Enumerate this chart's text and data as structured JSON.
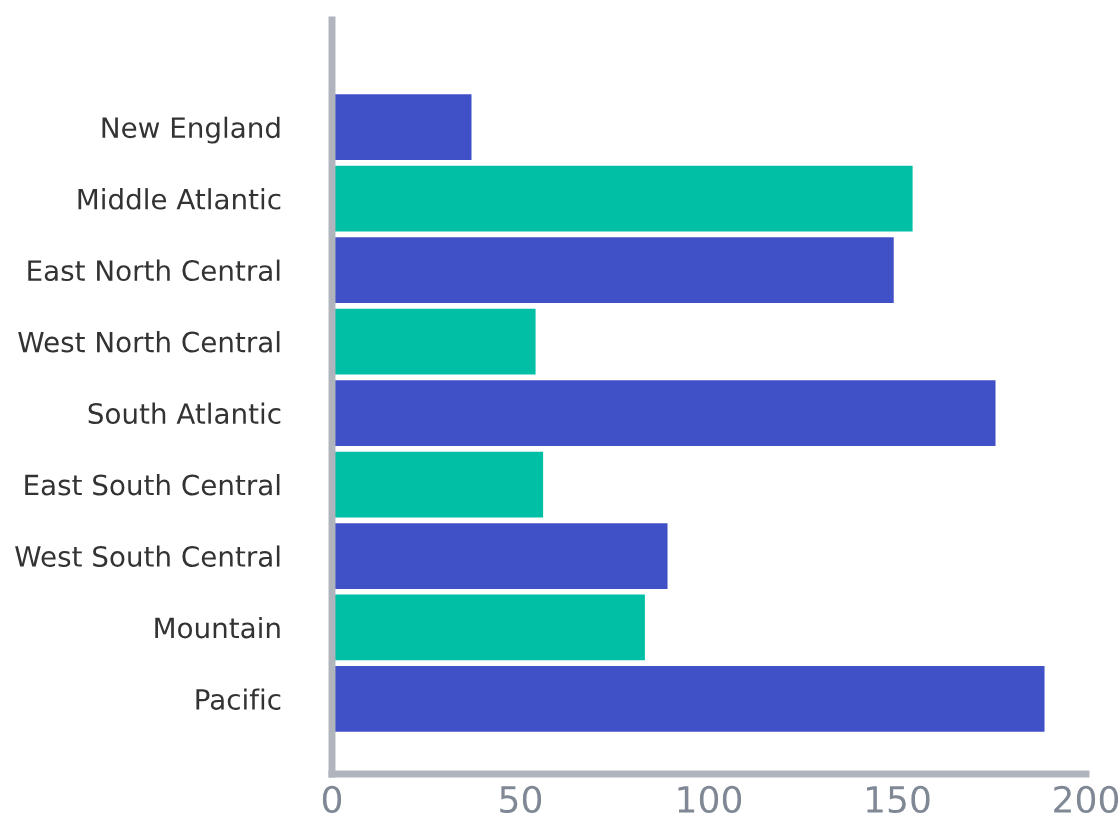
{
  "chart_data": {
    "type": "bar",
    "orientation": "horizontal",
    "categories": [
      "New England",
      "Middle Atlantic",
      "East North Central",
      "West North Central",
      "South Atlantic",
      "East South Central",
      "West South Central",
      "Mountain",
      "Pacific"
    ],
    "values": [
      37,
      154,
      149,
      54,
      176,
      56,
      89,
      83,
      189
    ],
    "colors": [
      "#4051c7",
      "#00bfa5",
      "#4051c7",
      "#00bfa5",
      "#4051c7",
      "#00bfa5",
      "#4051c7",
      "#00bfa5",
      "#4051c7"
    ],
    "xlim": [
      0,
      200
    ],
    "xticks": [
      0,
      50,
      100,
      150,
      200
    ],
    "grid": false,
    "legend": false
  }
}
